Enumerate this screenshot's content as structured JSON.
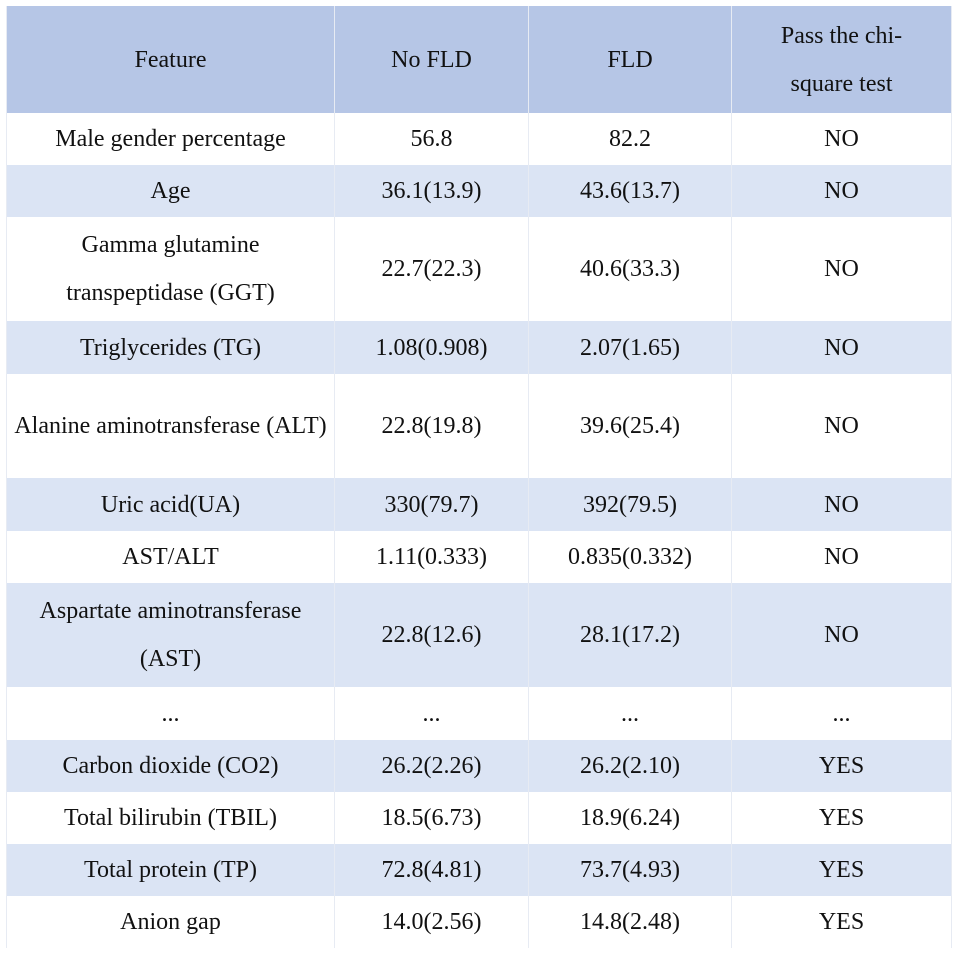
{
  "table": {
    "headers": [
      "Feature",
      "No FLD",
      "FLD",
      "Pass the chi-square test"
    ],
    "rows": [
      {
        "feature": "Male gender percentage",
        "no_fld": "56.8",
        "fld": "82.2",
        "pass": "NO"
      },
      {
        "feature": "Age",
        "no_fld": "36.1(13.9)",
        "fld": "43.6(13.7)",
        "pass": "NO"
      },
      {
        "feature": "Gamma glutamine transpeptidase (GGT)",
        "no_fld": "22.7(22.3)",
        "fld": "40.6(33.3)",
        "pass": "NO"
      },
      {
        "feature": "Triglycerides (TG)",
        "no_fld": "1.08(0.908)",
        "fld": "2.07(1.65)",
        "pass": "NO"
      },
      {
        "feature": "Alanine aminotransferase (ALT)",
        "no_fld": "22.8(19.8)",
        "fld": "39.6(25.4)",
        "pass": "NO"
      },
      {
        "feature": "Uric acid(UA)",
        "no_fld": "330(79.7)",
        "fld": "392(79.5)",
        "pass": "NO"
      },
      {
        "feature": "AST/ALT",
        "no_fld": "1.11(0.333)",
        "fld": "0.835(0.332)",
        "pass": "NO"
      },
      {
        "feature": "Aspartate aminotransferase (AST)",
        "no_fld": "22.8(12.6)",
        "fld": "28.1(17.2)",
        "pass": "NO"
      },
      {
        "feature": "...",
        "no_fld": "...",
        "fld": "...",
        "pass": "..."
      },
      {
        "feature": "Carbon dioxide (CO2)",
        "no_fld": "26.2(2.26)",
        "fld": "26.2(2.10)",
        "pass": "YES"
      },
      {
        "feature": "Total bilirubin (TBIL)",
        "no_fld": "18.5(6.73)",
        "fld": "18.9(6.24)",
        "pass": "YES"
      },
      {
        "feature": "Total protein (TP)",
        "no_fld": "72.8(4.81)",
        "fld": "73.7(4.93)",
        "pass": "YES"
      },
      {
        "feature": "Anion gap",
        "no_fld": "14.0(2.56)",
        "fld": "14.8(2.48)",
        "pass": "YES"
      }
    ]
  }
}
